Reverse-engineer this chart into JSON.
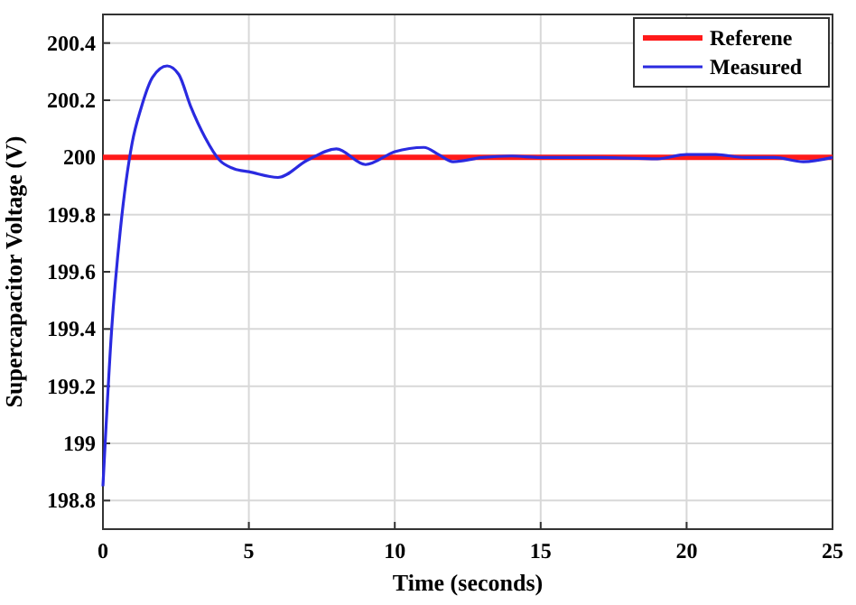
{
  "chart_data": {
    "type": "line",
    "xlabel": "Time (seconds)",
    "ylabel": "Supercapacitor Voltage (V)",
    "xlim": [
      0,
      25
    ],
    "xticks": [
      0,
      5,
      10,
      15,
      20,
      25
    ],
    "ylim": [
      198.7,
      200.5
    ],
    "yticks": [
      198.8,
      199,
      199.2,
      199.4,
      199.6,
      199.8,
      200,
      200.2,
      200.4
    ],
    "grid": true,
    "legend": "top right",
    "line_style": "solid",
    "marker": "none",
    "series": [
      {
        "name": "Referene",
        "color": "#ff1a1a",
        "x": [
          0,
          25
        ],
        "values": [
          200,
          200
        ]
      },
      {
        "name": "Measured",
        "color": "#2a2ae0",
        "x": [
          0,
          0.3,
          0.6,
          1,
          1.3,
          1.7,
          2.2,
          2.6,
          3,
          3.5,
          4,
          4.5,
          5,
          6,
          7,
          8,
          9,
          10,
          11,
          11.5,
          12,
          13,
          14,
          15,
          17,
          19,
          20,
          21,
          22,
          23,
          24,
          25
        ],
        "values": [
          198.85,
          199.4,
          199.75,
          200.05,
          200.17,
          200.28,
          200.32,
          200.29,
          200.18,
          200.07,
          199.99,
          199.96,
          199.95,
          199.93,
          199.99,
          200.03,
          199.975,
          200.02,
          200.035,
          200.01,
          199.985,
          200,
          200.005,
          200,
          200,
          199.995,
          200.01,
          200.01,
          200,
          200,
          199.985,
          200
        ]
      }
    ]
  }
}
